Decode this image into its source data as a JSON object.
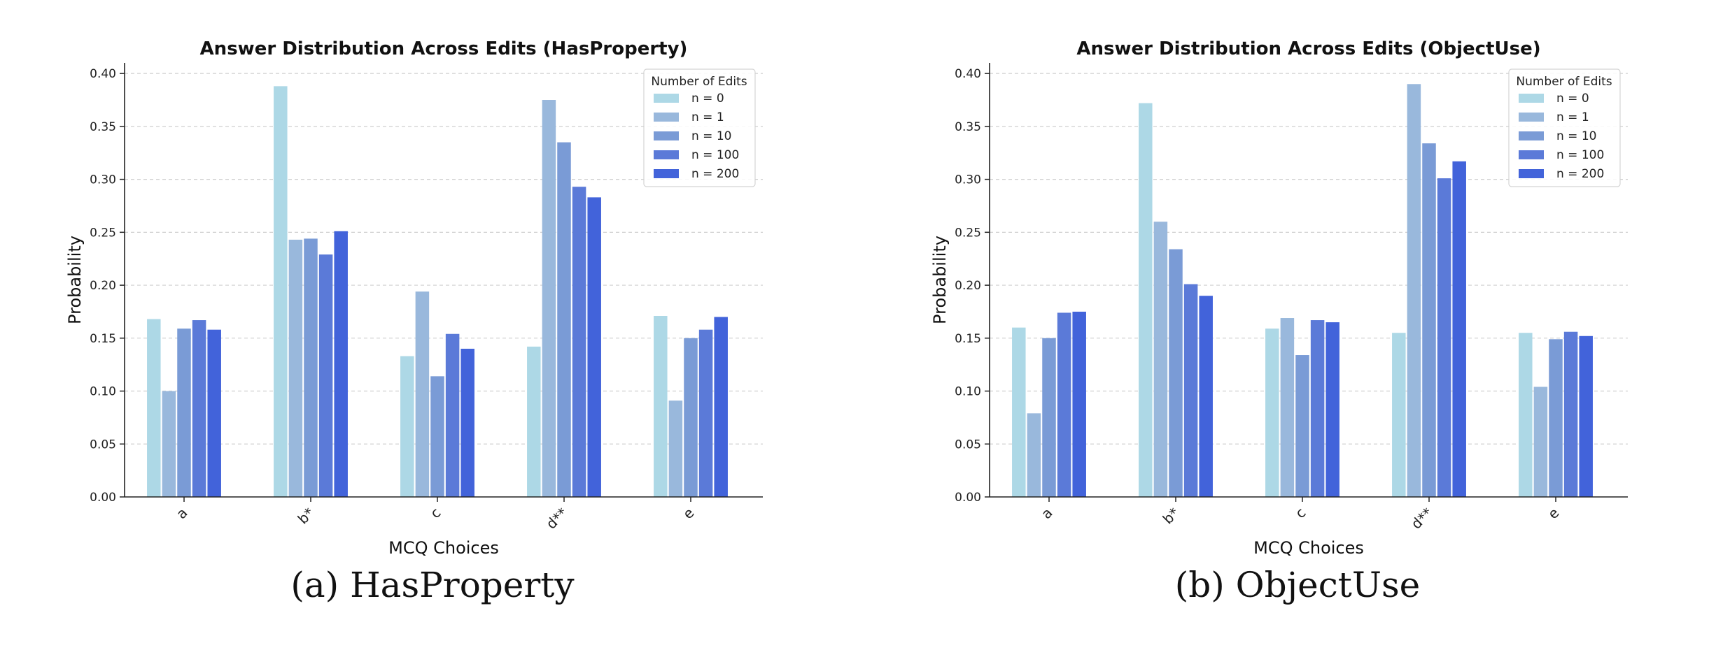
{
  "legend_title": "Number of Edits",
  "series_names": [
    "n = 0",
    "n = 1",
    "n = 10",
    "n = 100",
    "n = 200"
  ],
  "series_colors": [
    "#add8e6",
    "#99b8dc",
    "#7a9bd6",
    "#5b7ad8",
    "#4263da"
  ],
  "panels": [
    {
      "caption": "(a) HasProperty",
      "chart_data": {
        "type": "bar",
        "title": "Answer Distribution Across Edits (HasProperty)",
        "xlabel": "MCQ Choices",
        "ylabel": "Probability",
        "ylim": [
          0,
          0.41
        ],
        "yticks": [
          "0.00",
          "0.05",
          "0.10",
          "0.15",
          "0.20",
          "0.25",
          "0.30",
          "0.35",
          "0.40"
        ],
        "grid": "horizontal dashed",
        "legend_position": "top-right",
        "categories": [
          "a",
          "b*",
          "c",
          "d**",
          "e"
        ],
        "series": [
          {
            "name": "n = 0",
            "values": [
              0.168,
              0.388,
              0.133,
              0.142,
              0.171
            ]
          },
          {
            "name": "n = 1",
            "values": [
              0.1,
              0.243,
              0.194,
              0.375,
              0.091
            ]
          },
          {
            "name": "n = 10",
            "values": [
              0.159,
              0.244,
              0.114,
              0.335,
              0.15
            ]
          },
          {
            "name": "n = 100",
            "values": [
              0.167,
              0.229,
              0.154,
              0.293,
              0.158
            ]
          },
          {
            "name": "n = 200",
            "values": [
              0.158,
              0.251,
              0.14,
              0.283,
              0.17
            ]
          }
        ]
      }
    },
    {
      "caption": "(b) ObjectUse",
      "chart_data": {
        "type": "bar",
        "title": "Answer Distribution Across Edits (ObjectUse)",
        "xlabel": "MCQ Choices",
        "ylabel": "Probability",
        "ylim": [
          0,
          0.41
        ],
        "yticks": [
          "0.00",
          "0.05",
          "0.10",
          "0.15",
          "0.20",
          "0.25",
          "0.30",
          "0.35",
          "0.40"
        ],
        "grid": "horizontal dashed",
        "legend_position": "top-right",
        "categories": [
          "a",
          "b*",
          "c",
          "d**",
          "e"
        ],
        "series": [
          {
            "name": "n = 0",
            "values": [
              0.16,
              0.372,
              0.159,
              0.155,
              0.155
            ]
          },
          {
            "name": "n = 1",
            "values": [
              0.079,
              0.26,
              0.169,
              0.39,
              0.104
            ]
          },
          {
            "name": "n = 10",
            "values": [
              0.15,
              0.234,
              0.134,
              0.334,
              0.149
            ]
          },
          {
            "name": "n = 100",
            "values": [
              0.174,
              0.201,
              0.167,
              0.301,
              0.156
            ]
          },
          {
            "name": "n = 200",
            "values": [
              0.175,
              0.19,
              0.165,
              0.317,
              0.152
            ]
          }
        ]
      }
    }
  ]
}
